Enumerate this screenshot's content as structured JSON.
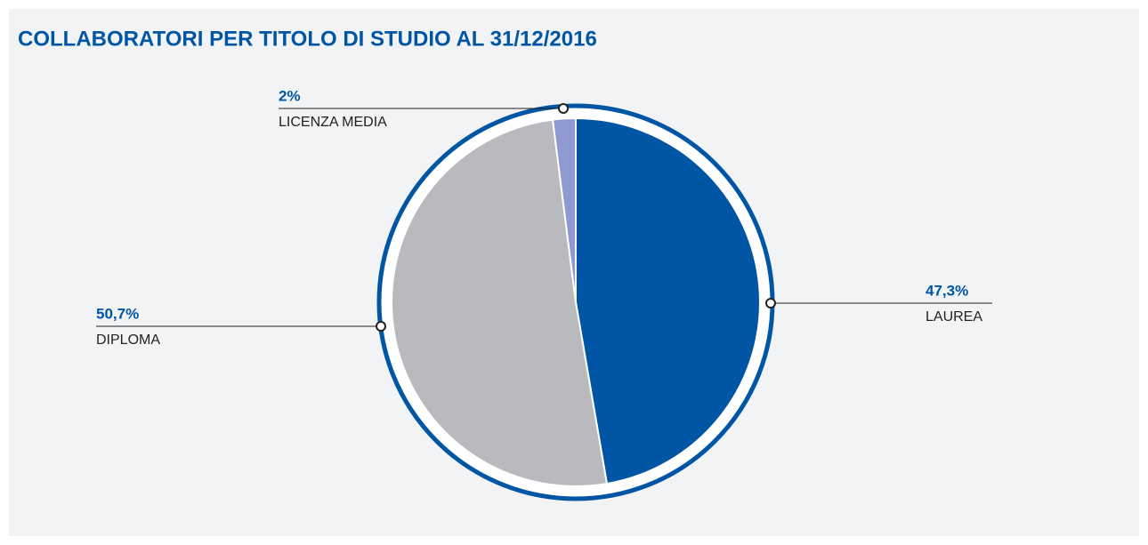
{
  "chart_data": {
    "type": "pie",
    "title": "COLLABORATORI PER TITOLO DI STUDIO AL 31/12/2016",
    "categories": [
      "LAUREA",
      "DIPLOMA",
      "LICENZA MEDIA"
    ],
    "values": [
      47.3,
      50.7,
      2
    ],
    "value_labels": [
      "47,3%",
      "50,7%",
      "2%"
    ],
    "colors": [
      "#0055a4",
      "#b9babe",
      "#8f9ad0"
    ]
  }
}
